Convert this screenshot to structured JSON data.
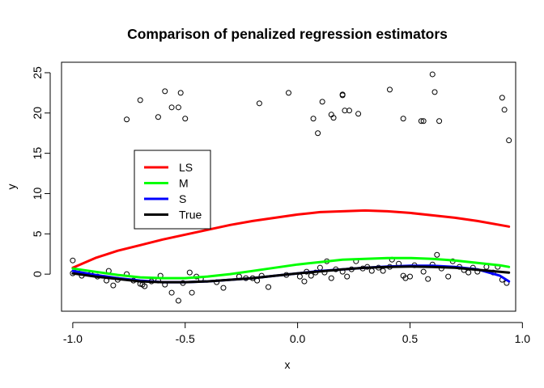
{
  "chart_data": {
    "type": "scatter",
    "title": "Comparison of penalized regression estimators",
    "xlabel": "x",
    "ylabel": "y",
    "xlim": [
      -1.05,
      0.97
    ],
    "ylim": [
      -4.6,
      26.3
    ],
    "xticks": [
      -1.0,
      -0.5,
      0.0,
      0.5,
      1.0
    ],
    "xtick_labels": [
      "-1.0",
      "-0.5",
      "0.0",
      "0.5",
      "1.0"
    ],
    "yticks": [
      0,
      5,
      10,
      15,
      20,
      25
    ],
    "ytick_labels": [
      "0",
      "5",
      "10",
      "15",
      "20",
      "25"
    ],
    "grid": false,
    "legend_position": "center-left",
    "points": [
      {
        "x": -1.0,
        "y": 1.7
      },
      {
        "x": -1.0,
        "y": 0.1
      },
      {
        "x": -0.98,
        "y": 0.3
      },
      {
        "x": -0.96,
        "y": -0.2
      },
      {
        "x": -0.92,
        "y": 0.0
      },
      {
        "x": -0.89,
        "y": -0.3
      },
      {
        "x": -0.85,
        "y": -0.8
      },
      {
        "x": -0.84,
        "y": 0.4
      },
      {
        "x": -0.82,
        "y": -1.4
      },
      {
        "x": -0.8,
        "y": -0.7
      },
      {
        "x": -0.76,
        "y": 0.0
      },
      {
        "x": -0.73,
        "y": -0.8
      },
      {
        "x": -0.7,
        "y": -1.2
      },
      {
        "x": -0.69,
        "y": -1.3
      },
      {
        "x": -0.68,
        "y": -1.5
      },
      {
        "x": -0.65,
        "y": -0.9
      },
      {
        "x": -0.62,
        "y": -0.8
      },
      {
        "x": -0.61,
        "y": -0.2
      },
      {
        "x": -0.59,
        "y": -1.3
      },
      {
        "x": -0.56,
        "y": -2.3
      },
      {
        "x": -0.53,
        "y": -3.3
      },
      {
        "x": -0.51,
        "y": -1.1
      },
      {
        "x": -0.48,
        "y": 0.2
      },
      {
        "x": -0.47,
        "y": -2.3
      },
      {
        "x": -0.45,
        "y": -0.3
      },
      {
        "x": -0.43,
        "y": -0.6
      },
      {
        "x": -0.36,
        "y": -1.0
      },
      {
        "x": -0.33,
        "y": -1.7
      },
      {
        "x": -0.26,
        "y": -0.3
      },
      {
        "x": -0.23,
        "y": -0.5
      },
      {
        "x": -0.2,
        "y": -0.5
      },
      {
        "x": -0.18,
        "y": -0.8
      },
      {
        "x": -0.16,
        "y": -0.2
      },
      {
        "x": -0.13,
        "y": -1.6
      },
      {
        "x": -0.05,
        "y": -0.1
      },
      {
        "x": 0.01,
        "y": -0.3
      },
      {
        "x": 0.03,
        "y": -0.9
      },
      {
        "x": 0.04,
        "y": 0.3
      },
      {
        "x": 0.06,
        "y": -0.2
      },
      {
        "x": 0.08,
        "y": 0.2
      },
      {
        "x": 0.1,
        "y": 0.8
      },
      {
        "x": 0.12,
        "y": 0.2
      },
      {
        "x": 0.13,
        "y": 1.6
      },
      {
        "x": 0.15,
        "y": -0.5
      },
      {
        "x": 0.17,
        "y": 0.6
      },
      {
        "x": 0.2,
        "y": 0.3
      },
      {
        "x": 0.22,
        "y": -0.3
      },
      {
        "x": 0.24,
        "y": 0.6
      },
      {
        "x": 0.26,
        "y": 1.6
      },
      {
        "x": 0.29,
        "y": 0.7
      },
      {
        "x": 0.31,
        "y": 0.9
      },
      {
        "x": 0.33,
        "y": 0.4
      },
      {
        "x": 0.36,
        "y": 0.8
      },
      {
        "x": 0.38,
        "y": 0.4
      },
      {
        "x": 0.41,
        "y": 0.9
      },
      {
        "x": 0.42,
        "y": 1.8
      },
      {
        "x": 0.45,
        "y": 1.3
      },
      {
        "x": 0.47,
        "y": -0.2
      },
      {
        "x": 0.48,
        "y": -0.5
      },
      {
        "x": 0.5,
        "y": -0.3
      },
      {
        "x": 0.52,
        "y": 1.1
      },
      {
        "x": 0.56,
        "y": 0.3
      },
      {
        "x": 0.58,
        "y": -0.6
      },
      {
        "x": 0.6,
        "y": 1.2
      },
      {
        "x": 0.62,
        "y": 2.4
      },
      {
        "x": 0.64,
        "y": 0.7
      },
      {
        "x": 0.67,
        "y": -0.3
      },
      {
        "x": 0.69,
        "y": 1.6
      },
      {
        "x": 0.72,
        "y": 0.9
      },
      {
        "x": 0.74,
        "y": 0.5
      },
      {
        "x": 0.76,
        "y": 0.2
      },
      {
        "x": 0.78,
        "y": 0.8
      },
      {
        "x": 0.8,
        "y": 0.3
      },
      {
        "x": 0.84,
        "y": 0.9
      },
      {
        "x": 0.87,
        "y": 0.2
      },
      {
        "x": 0.89,
        "y": 0.9
      },
      {
        "x": 0.91,
        "y": -0.7
      },
      {
        "x": 0.93,
        "y": -1.1
      },
      {
        "x": -0.76,
        "y": 19.2
      },
      {
        "x": -0.7,
        "y": 21.6
      },
      {
        "x": -0.62,
        "y": 19.5
      },
      {
        "x": -0.59,
        "y": 22.7
      },
      {
        "x": -0.56,
        "y": 20.7
      },
      {
        "x": -0.53,
        "y": 20.7
      },
      {
        "x": -0.52,
        "y": 22.5
      },
      {
        "x": -0.5,
        "y": 19.3
      },
      {
        "x": -0.17,
        "y": 21.2
      },
      {
        "x": -0.04,
        "y": 22.5
      },
      {
        "x": 0.07,
        "y": 19.3
      },
      {
        "x": 0.09,
        "y": 17.5
      },
      {
        "x": 0.11,
        "y": 21.4
      },
      {
        "x": 0.15,
        "y": 19.8
      },
      {
        "x": 0.16,
        "y": 19.4
      },
      {
        "x": 0.2,
        "y": 22.2
      },
      {
        "x": 0.2,
        "y": 22.3
      },
      {
        "x": 0.21,
        "y": 20.3
      },
      {
        "x": 0.23,
        "y": 20.3
      },
      {
        "x": 0.27,
        "y": 19.9
      },
      {
        "x": 0.41,
        "y": 22.9
      },
      {
        "x": 0.47,
        "y": 19.3
      },
      {
        "x": 0.55,
        "y": 19.0
      },
      {
        "x": 0.56,
        "y": 19.0
      },
      {
        "x": 0.6,
        "y": 24.8
      },
      {
        "x": 0.61,
        "y": 22.6
      },
      {
        "x": 0.63,
        "y": 19.0
      },
      {
        "x": 0.91,
        "y": 21.9
      },
      {
        "x": 0.92,
        "y": 20.4
      },
      {
        "x": 0.94,
        "y": 16.6
      }
    ],
    "series": [
      {
        "name": "LS",
        "color": "#ff0000",
        "x": [
          -1.0,
          -0.9,
          -0.8,
          -0.7,
          -0.6,
          -0.5,
          -0.4,
          -0.3,
          -0.2,
          -0.1,
          0.0,
          0.1,
          0.2,
          0.3,
          0.4,
          0.5,
          0.6,
          0.7,
          0.8,
          0.9,
          0.94
        ],
        "values": [
          0.8,
          2.0,
          2.9,
          3.6,
          4.3,
          4.9,
          5.5,
          6.1,
          6.6,
          7.0,
          7.4,
          7.7,
          7.8,
          7.9,
          7.8,
          7.6,
          7.3,
          7.0,
          6.6,
          6.1,
          5.9
        ]
      },
      {
        "name": "M",
        "color": "#00ff00",
        "x": [
          -1.0,
          -0.9,
          -0.8,
          -0.7,
          -0.6,
          -0.5,
          -0.4,
          -0.3,
          -0.2,
          -0.1,
          0.0,
          0.1,
          0.2,
          0.3,
          0.4,
          0.5,
          0.6,
          0.7,
          0.8,
          0.9,
          0.94
        ],
        "values": [
          0.7,
          0.3,
          -0.1,
          -0.4,
          -0.5,
          -0.5,
          -0.3,
          0.0,
          0.4,
          0.8,
          1.2,
          1.5,
          1.8,
          1.9,
          2.0,
          2.0,
          1.9,
          1.7,
          1.4,
          1.1,
          0.9
        ]
      },
      {
        "name": "S",
        "color": "#0000ff",
        "x": [
          -1.0,
          -0.9,
          -0.8,
          -0.7,
          -0.6,
          -0.5,
          -0.4,
          -0.3,
          -0.2,
          -0.1,
          0.0,
          0.1,
          0.2,
          0.3,
          0.4,
          0.5,
          0.6,
          0.7,
          0.8,
          0.9,
          0.94
        ],
        "values": [
          0.4,
          -0.1,
          -0.5,
          -0.8,
          -1.0,
          -1.0,
          -0.9,
          -0.7,
          -0.5,
          -0.2,
          0.1,
          0.4,
          0.6,
          0.8,
          0.95,
          1.05,
          1.05,
          0.9,
          0.6,
          -0.2,
          -0.9
        ]
      },
      {
        "name": "True",
        "color": "#000000",
        "x": [
          -1.0,
          -0.9,
          -0.8,
          -0.7,
          -0.6,
          -0.5,
          -0.4,
          -0.3,
          -0.2,
          -0.1,
          0.0,
          0.1,
          0.2,
          0.3,
          0.4,
          0.5,
          0.6,
          0.7,
          0.8,
          0.9,
          0.94
        ],
        "values": [
          0.1,
          -0.3,
          -0.6,
          -0.9,
          -1.0,
          -1.0,
          -0.9,
          -0.7,
          -0.5,
          -0.2,
          0.1,
          0.35,
          0.6,
          0.8,
          0.9,
          0.95,
          0.9,
          0.8,
          0.55,
          0.3,
          0.2
        ]
      }
    ]
  }
}
